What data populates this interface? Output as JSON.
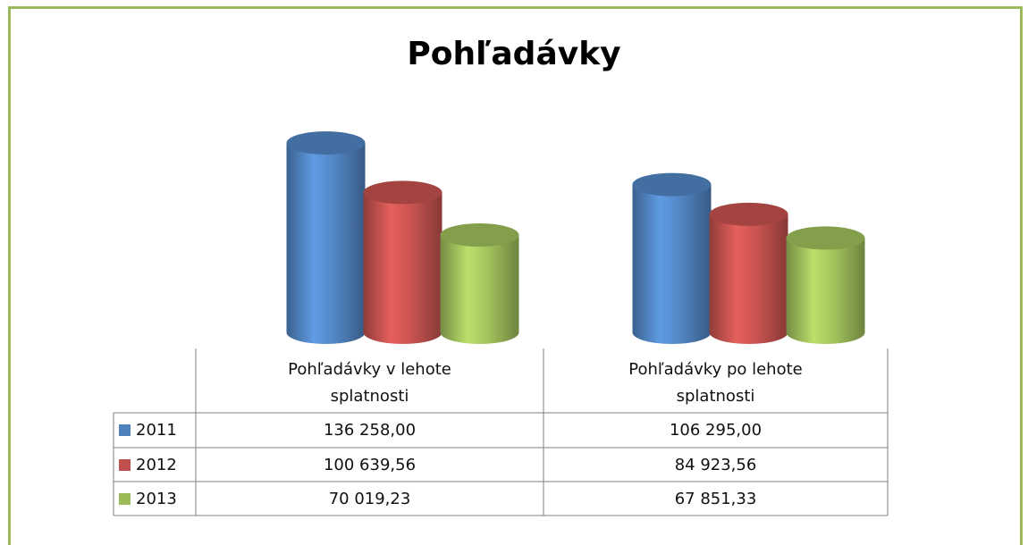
{
  "chart_data": {
    "type": "bar3d-cylinder",
    "title": "Pohľadávky",
    "categories": [
      "Pohľadávky v lehote splatnosti",
      "Pohľadávky po lehote splatnosti"
    ],
    "series": [
      {
        "name": "2011",
        "color": "#4f81bd",
        "values": [
          136258,
          106295
        ],
        "value_labels": [
          "136 258,00",
          "106 295,00"
        ]
      },
      {
        "name": "2012",
        "color": "#c0504d",
        "values": [
          100639.56,
          84923.56
        ],
        "value_labels": [
          "100 639,56",
          "84 923,56"
        ]
      },
      {
        "name": "2013",
        "color": "#9bbb59",
        "values": [
          70019.23,
          67851.33
        ],
        "value_labels": [
          "70 019,23",
          "67 851,33"
        ]
      }
    ]
  }
}
